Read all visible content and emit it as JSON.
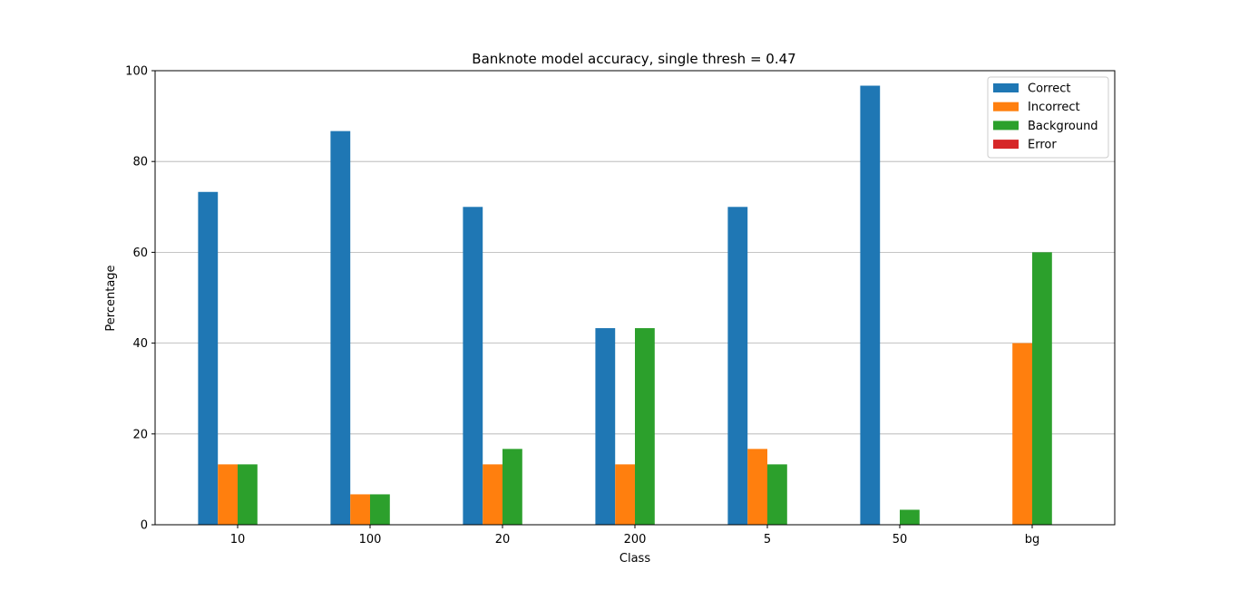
{
  "chart_data": {
    "type": "bar",
    "title": "Banknote model accuracy, single thresh = 0.47",
    "xlabel": "Class",
    "ylabel": "Percentage",
    "categories": [
      "10",
      "100",
      "20",
      "200",
      "5",
      "50",
      "bg"
    ],
    "ylim": [
      0,
      100
    ],
    "yticks": [
      "0",
      "20",
      "40",
      "60",
      "80",
      "100"
    ],
    "grid": "horizontal",
    "legend_position": "top-right",
    "series": [
      {
        "name": "Correct",
        "color": "#1f77b4",
        "values": [
          73.3,
          86.7,
          70.0,
          43.3,
          70.0,
          96.7,
          0
        ]
      },
      {
        "name": "Incorrect",
        "color": "#ff7f0e",
        "values": [
          13.3,
          6.7,
          13.3,
          13.3,
          16.7,
          0,
          40.0
        ]
      },
      {
        "name": "Background",
        "color": "#2ca02c",
        "values": [
          13.3,
          6.7,
          16.7,
          43.3,
          13.3,
          3.3,
          60.0
        ]
      },
      {
        "name": "Error",
        "color": "#d62728",
        "values": [
          0,
          0,
          0,
          0,
          0,
          0,
          0
        ]
      }
    ]
  }
}
